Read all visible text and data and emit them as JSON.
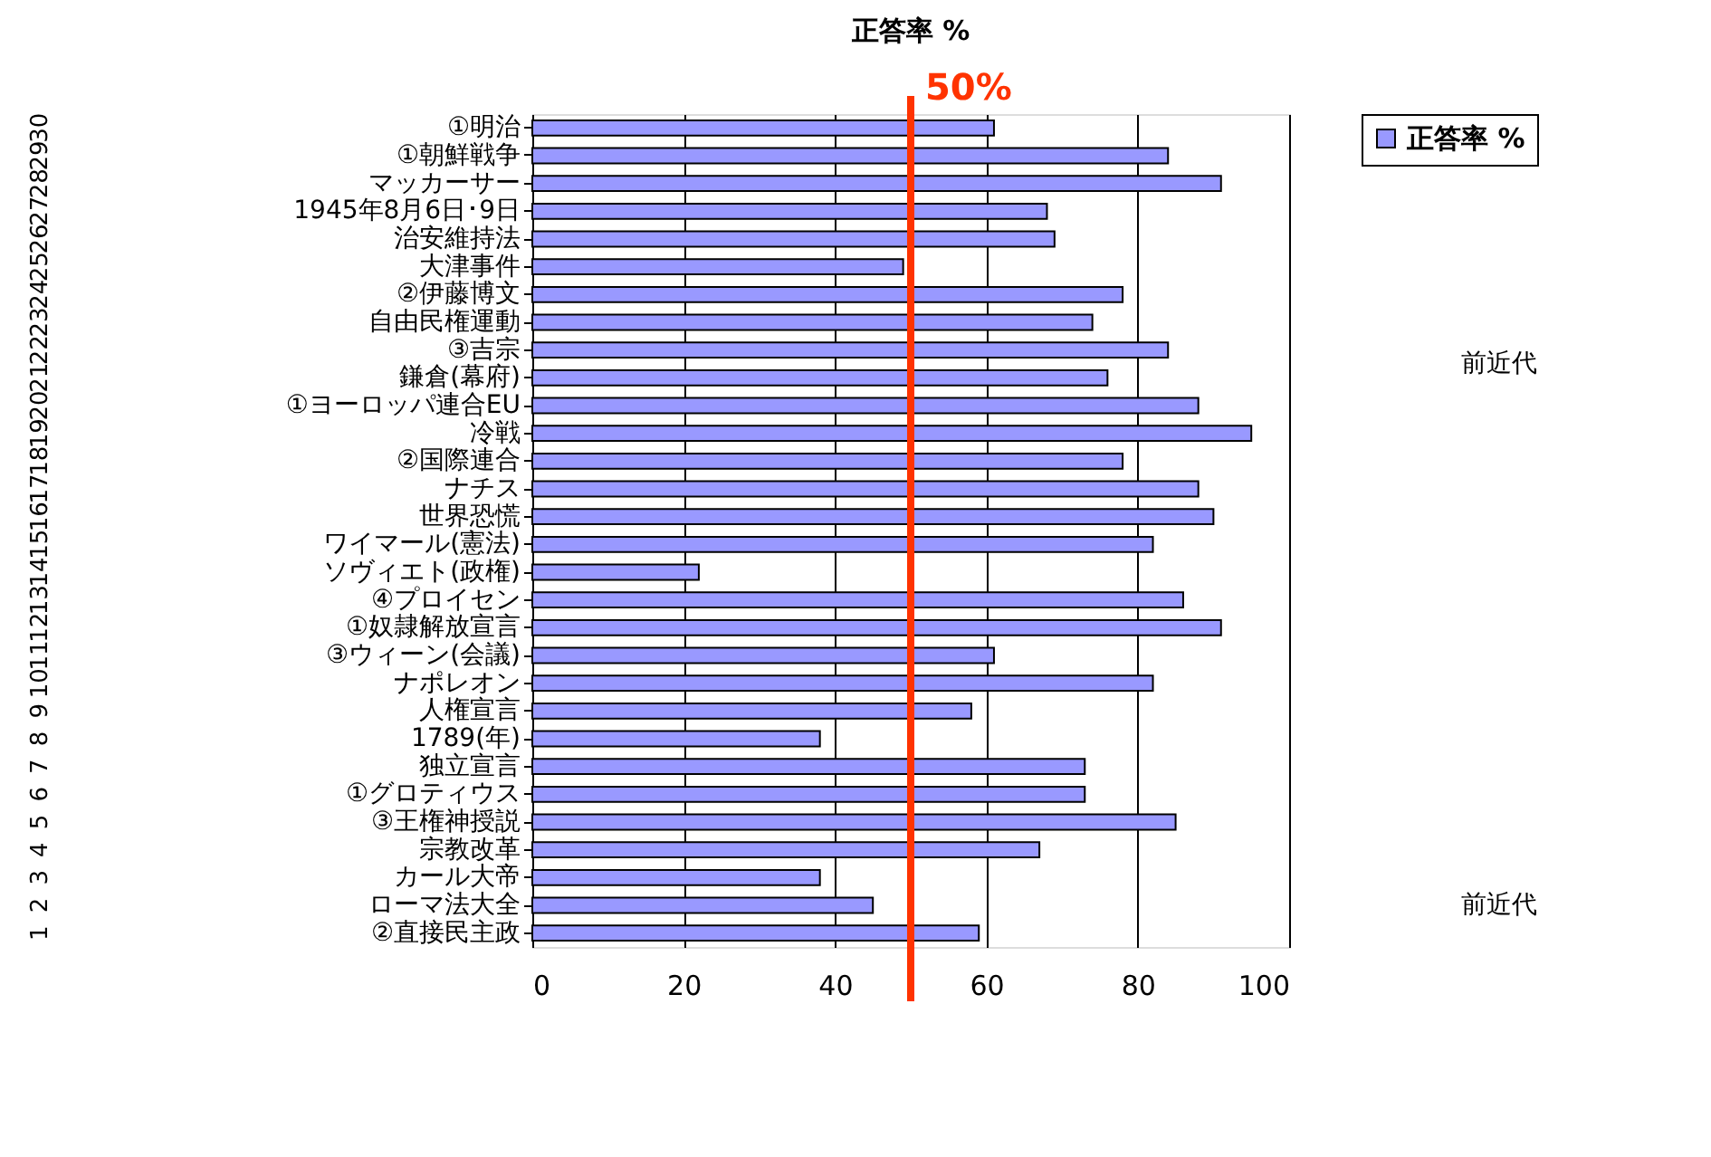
{
  "chart_data": {
    "type": "bar",
    "orientation": "horizontal",
    "title": "正答率 %",
    "categories": [
      "①明治",
      "①朝鮮戦争",
      "マッカーサー",
      "1945年8月6日･9日",
      "治安維持法",
      "大津事件",
      "②伊藤博文",
      "自由民権運動",
      "③吉宗",
      "鎌倉(幕府)",
      "①ヨーロッパ連合EU",
      "冷戦",
      "②国際連合",
      "ナチス",
      "世界恐慌",
      "ワイマール(憲法)",
      "ソヴィエト(政権)",
      "④プロイセン",
      "①奴隷解放宣言",
      "③ウィーン(会議)",
      "ナポレオン",
      "人権宣言",
      "1789(年)",
      "独立宣言",
      "①グロティウス",
      "③王権神授説",
      "宗教改革",
      "カール大帝",
      "ローマ法大全",
      "②直接民主政"
    ],
    "y2_categories": [
      "30",
      "29",
      "28",
      "27",
      "26",
      "25",
      "24",
      "23",
      "22",
      "21",
      "20",
      "19",
      "18",
      "17",
      "16",
      "15",
      "14",
      "13",
      "12",
      "11",
      "10",
      "9",
      "8",
      "7",
      "6",
      "5",
      "4",
      "3",
      "2",
      "1"
    ],
    "series": [
      {
        "name": "正答率 %",
        "color": "#9999ff",
        "values": [
          61,
          84,
          91,
          68,
          69,
          49,
          78,
          74,
          84,
          76,
          88,
          95,
          78,
          88,
          90,
          82,
          22,
          86,
          91,
          61,
          82,
          58,
          38,
          73,
          73,
          85,
          67,
          38,
          45,
          59
        ]
      }
    ],
    "xlim": [
      0,
      100
    ],
    "xticks": [
      0,
      20,
      40,
      60,
      80,
      100
    ],
    "grid": "x",
    "legend": "right",
    "ref_lines": [
      {
        "axis": "x",
        "value": 50,
        "label": "50%",
        "color": "#ff3300"
      }
    ],
    "annotations": [
      "前近代",
      "前近代"
    ]
  }
}
